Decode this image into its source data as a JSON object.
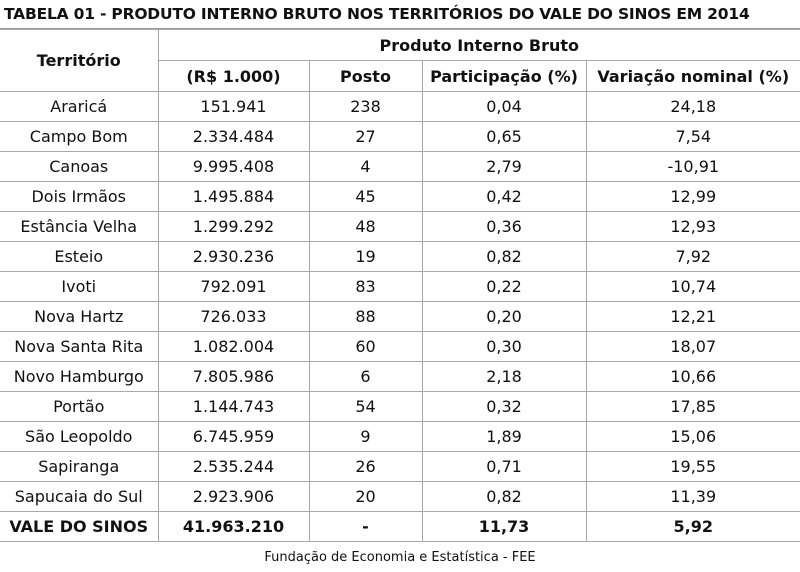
{
  "title": "TABELA 01 - PRODUTO INTERNO BRUTO NOS TERRITÓRIOS DO VALE DO SINOS EM 2014",
  "header": {
    "territory": "Território",
    "group": "Produto Interno Bruto",
    "col_value": "(R$ 1.000)",
    "col_rank": "Posto",
    "col_share": "Participação (%)",
    "col_variation": "Variação nominal (%)"
  },
  "rows": [
    {
      "name": "Araricá",
      "value": "151.941",
      "rank": "238",
      "share": "0,04",
      "variation": "24,18"
    },
    {
      "name": "Campo Bom",
      "value": "2.334.484",
      "rank": "27",
      "share": "0,65",
      "variation": "7,54"
    },
    {
      "name": "Canoas",
      "value": "9.995.408",
      "rank": "4",
      "share": "2,79",
      "variation": "-10,91"
    },
    {
      "name": "Dois Irmãos",
      "value": "1.495.884",
      "rank": "45",
      "share": "0,42",
      "variation": "12,99"
    },
    {
      "name": "Estância Velha",
      "value": "1.299.292",
      "rank": "48",
      "share": "0,36",
      "variation": "12,93"
    },
    {
      "name": "Esteio",
      "value": "2.930.236",
      "rank": "19",
      "share": "0,82",
      "variation": "7,92"
    },
    {
      "name": "Ivoti",
      "value": "792.091",
      "rank": "83",
      "share": "0,22",
      "variation": "10,74"
    },
    {
      "name": "Nova Hartz",
      "value": "726.033",
      "rank": "88",
      "share": "0,20",
      "variation": "12,21"
    },
    {
      "name": "Nova Santa Rita",
      "value": "1.082.004",
      "rank": "60",
      "share": "0,30",
      "variation": "18,07"
    },
    {
      "name": "Novo Hamburgo",
      "value": "7.805.986",
      "rank": "6",
      "share": "2,18",
      "variation": "10,66"
    },
    {
      "name": "Portão",
      "value": "1.144.743",
      "rank": "54",
      "share": "0,32",
      "variation": "17,85"
    },
    {
      "name": "São Leopoldo",
      "value": "6.745.959",
      "rank": "9",
      "share": "1,89",
      "variation": "15,06"
    },
    {
      "name": "Sapiranga",
      "value": "2.535.244",
      "rank": "26",
      "share": "0,71",
      "variation": "19,55"
    },
    {
      "name": "Sapucaia do Sul",
      "value": "2.923.906",
      "rank": "20",
      "share": "0,82",
      "variation": "11,39"
    }
  ],
  "total": {
    "name": "VALE DO SINOS",
    "value": "41.963.210",
    "rank": "-",
    "share": "11,73",
    "variation": "5,92"
  },
  "source": "Fundação de Economia e Estatística - FEE"
}
